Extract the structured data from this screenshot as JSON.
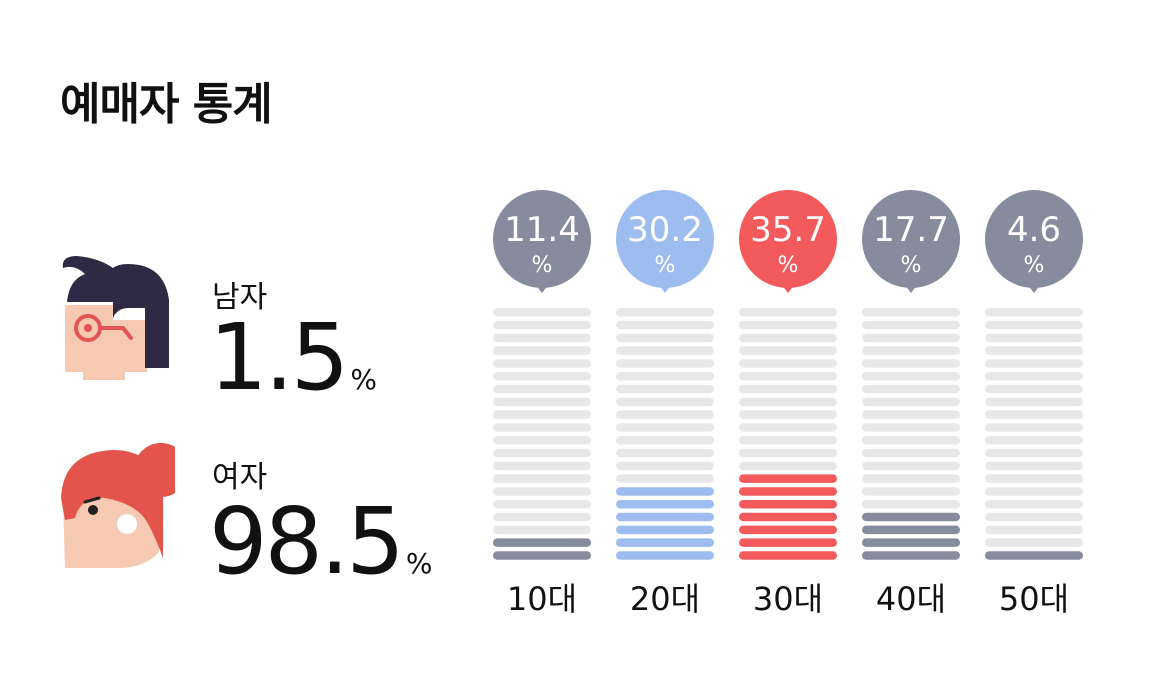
{
  "title": "예매자 통계",
  "gender": {
    "male": {
      "label": "남자",
      "value": "1.5",
      "unit": "%"
    },
    "female": {
      "label": "여자",
      "value": "98.5",
      "unit": "%"
    }
  },
  "colors": {
    "gray": "#878b9e",
    "blue": "#9dbcef",
    "red": "#f25a5c",
    "empty": "#e8e8e8",
    "male_hair": "#2e2a43",
    "female_hair": "#e3554c",
    "skin": "#f6c9b2"
  },
  "chart_data": {
    "type": "bar",
    "categories": [
      "10대",
      "20대",
      "30대",
      "40대",
      "50대"
    ],
    "values": [
      11.4,
      30.2,
      35.7,
      17.7,
      4.6
    ],
    "value_labels": [
      "11.4",
      "30.2",
      "35.7",
      "17.7",
      "4.6"
    ],
    "unit": "%",
    "bar_colors": [
      "gray",
      "blue",
      "red",
      "gray",
      "gray"
    ],
    "segments_total": 20,
    "segments_filled": [
      2,
      6,
      7,
      4,
      1
    ]
  }
}
